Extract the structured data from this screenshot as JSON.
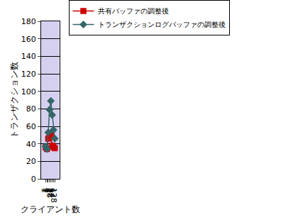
{
  "chart_data": {
    "type": "line",
    "x_label": "クライアント数",
    "y_label": "トランザクション数",
    "categories": [
      "1",
      "2",
      "4",
      "8",
      "16",
      "32",
      "64",
      "128"
    ],
    "series": [
      {
        "name": "共有バッファの調整後",
        "color": "#cc0000",
        "marker": "square",
        "values": [
          36,
          34,
          46,
          52,
          50,
          38,
          36,
          35
        ]
      },
      {
        "name": "トランザクションログバッファの調整後",
        "color": "#336666",
        "marker": "diamond",
        "values": [
          37,
          34,
          53,
          79,
          89,
          73,
          56,
          46
        ]
      }
    ],
    "ylim": [
      0,
      180
    ],
    "yticks": [
      0,
      20,
      40,
      60,
      80,
      100,
      120,
      140,
      160,
      180
    ],
    "grid": true,
    "legend": "top"
  }
}
